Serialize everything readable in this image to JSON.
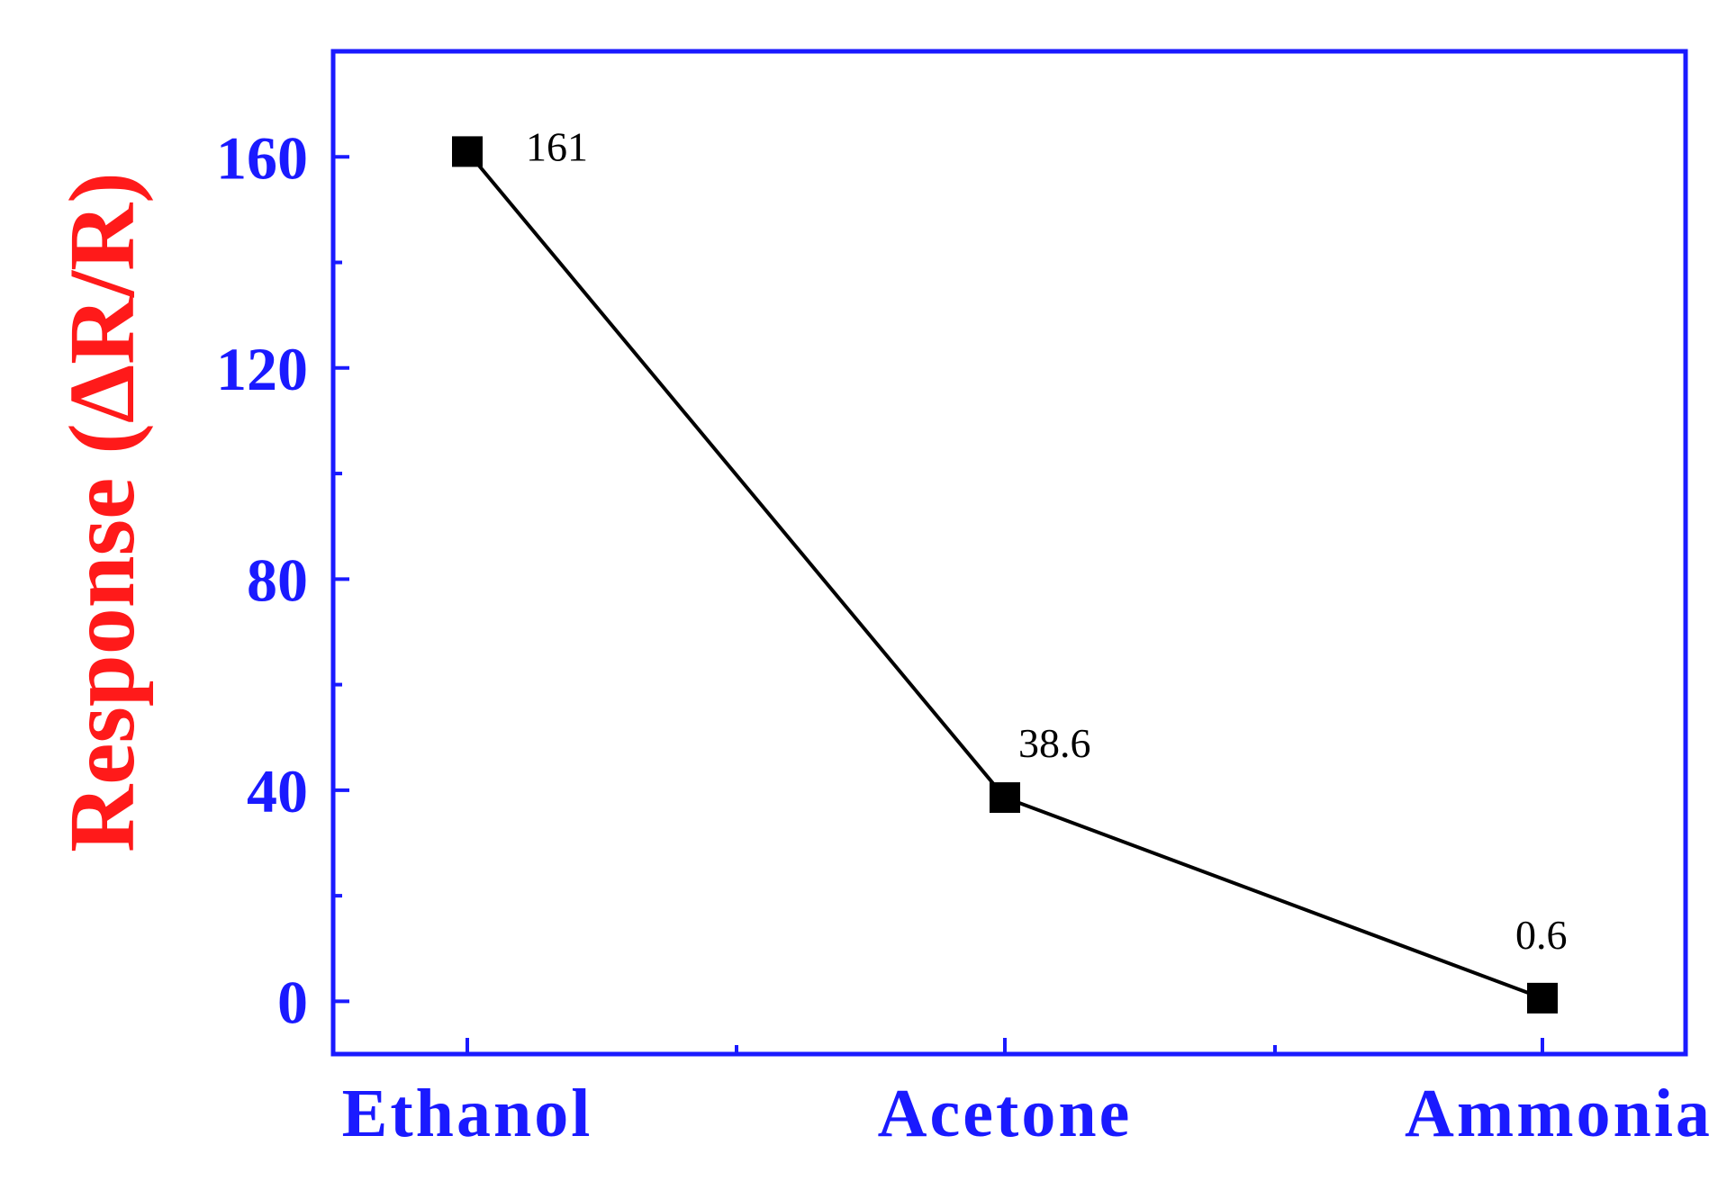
{
  "chart_data": {
    "type": "line",
    "title": "",
    "xlabel": "",
    "ylabel": "Response (ΔR/R)",
    "categories": [
      "Ethanol",
      "Acetone",
      "Ammonia"
    ],
    "series": [
      {
        "values": [
          161,
          38.6,
          0.6
        ],
        "data_labels": [
          "161",
          "38.6",
          "0.6"
        ]
      }
    ],
    "ylim": [
      -10,
      180
    ],
    "yticks": [
      0,
      40,
      80,
      120,
      160
    ],
    "yticks_minor": [
      20,
      60,
      100,
      140
    ],
    "grid": false,
    "legend": "none",
    "marker": "square",
    "colors": {
      "axis": "#1a1aff",
      "tick_label": "#1a1aff",
      "ylabel": "#ff1a1a",
      "line": "#000000",
      "marker": "#000000",
      "data_label": "#000000"
    }
  }
}
